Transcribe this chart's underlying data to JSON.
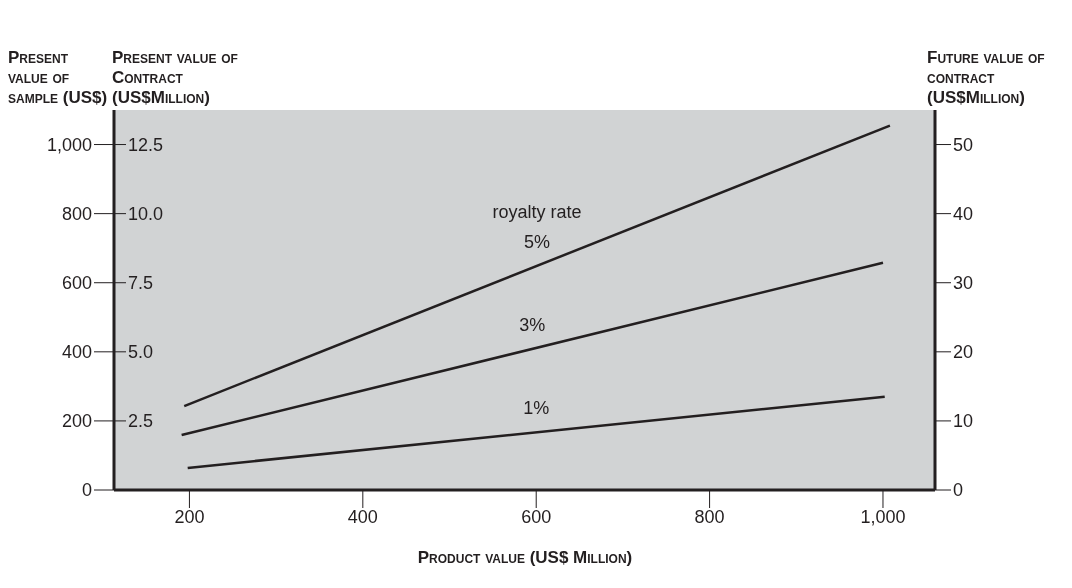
{
  "chart_data": {
    "type": "line",
    "xlabel": "Product value (US$ Million)",
    "ylabel": "Present value of sample (US$)",
    "y3label": "Present value of Contract (US$Million)",
    "y2label": "Future value of contract (US$Million)",
    "xlim": [
      113,
      1060
    ],
    "xticks": [
      200,
      400,
      600,
      800,
      {
        "value": 1000,
        "label": "1,000"
      }
    ],
    "ylim": [
      0,
      1100
    ],
    "yticks": [
      0,
      200,
      400,
      600,
      800,
      {
        "value": 1000,
        "label": "1,000"
      }
    ],
    "y3lim": [
      0,
      13.75
    ],
    "y3ticks": [
      2.5,
      {
        "value": 5,
        "label": "5.0"
      },
      7.5,
      {
        "value": 10,
        "label": "10.0"
      },
      12.5
    ],
    "y2lim": [
      0,
      55
    ],
    "y2ticks": [
      0,
      10,
      20,
      30,
      40,
      50
    ],
    "grid": false,
    "legend": false,
    "marker": "none",
    "line_style": "solid",
    "series": [
      {
        "name": "5%",
        "color": "#231f20",
        "x": [
          194,
          1008
        ],
        "values": [
          243,
          1055
        ]
      },
      {
        "name": "3%",
        "color": "#231f20",
        "x": [
          191,
          1000
        ],
        "values": [
          159,
          658
        ]
      },
      {
        "name": "1%",
        "color": "#231f20",
        "x": [
          198,
          1002
        ],
        "values": [
          64,
          270
        ]
      }
    ],
    "annotations": [
      "royalty rate"
    ]
  }
}
